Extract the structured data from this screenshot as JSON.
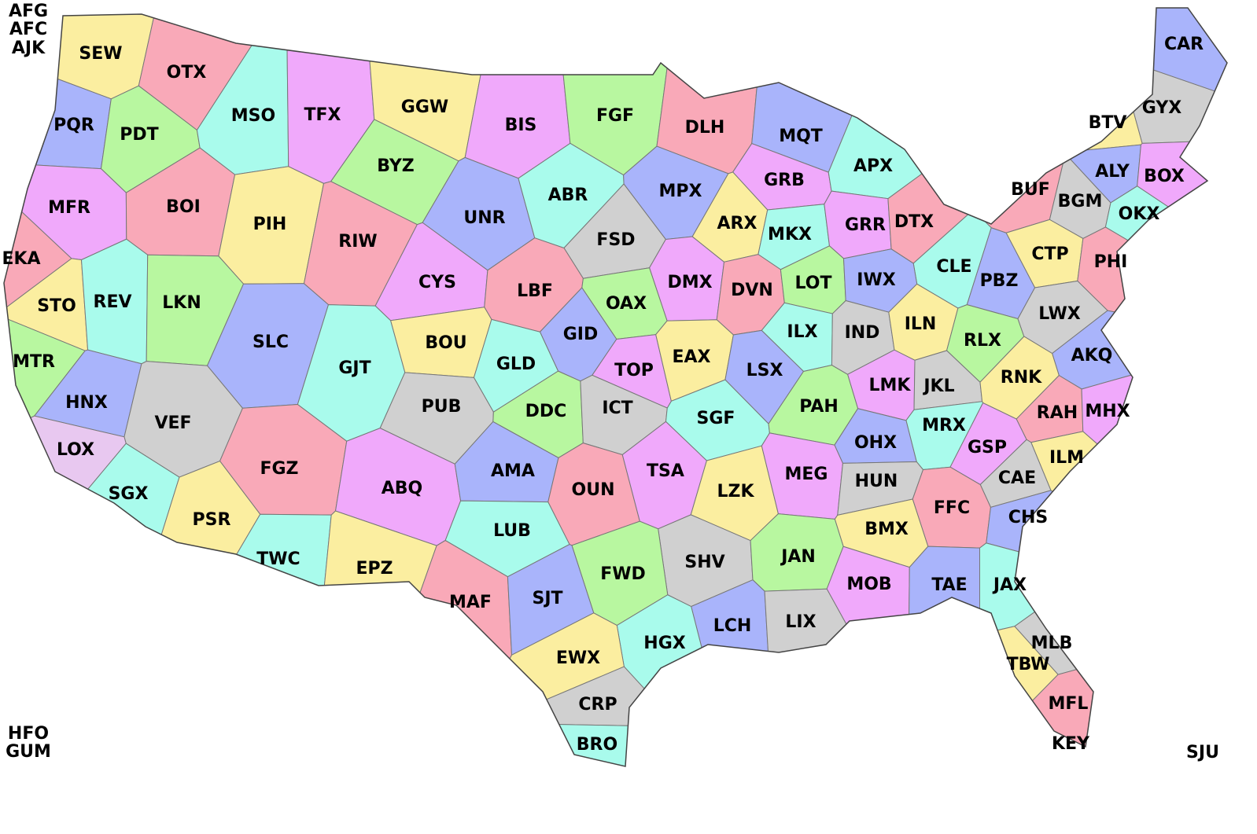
{
  "offices": [
    "AFG",
    "AFC",
    "AJK",
    "SEW",
    "OTX",
    "PQR",
    "PDT",
    "MSO",
    "TFX",
    "GGW",
    "BIS",
    "FGF",
    "DLH",
    "MQT",
    "BYZ",
    "MFR",
    "BOI",
    "PIH",
    "UNR",
    "ABR",
    "MPX",
    "GRB",
    "APX",
    "BUF",
    "BTV",
    "GYX",
    "CAR",
    "ALY",
    "BOX",
    "BGM",
    "OKX",
    "EKA",
    "RIW",
    "FSD",
    "ARX",
    "MKX",
    "GRR",
    "DTX",
    "CTP",
    "PHI",
    "CLE",
    "PBZ",
    "STO",
    "REV",
    "LKN",
    "CYS",
    "LBF",
    "DMX",
    "DVN",
    "LOT",
    "IWX",
    "SLC",
    "BOU",
    "OAX",
    "GID",
    "ILX",
    "IND",
    "ILN",
    "RLX",
    "LWX",
    "AKQ",
    "MTR",
    "GJT",
    "GLD",
    "TOP",
    "EAX",
    "LSX",
    "LMK",
    "JKL",
    "RNK",
    "HNX",
    "VEF",
    "PUB",
    "DDC",
    "ICT",
    "SGF",
    "PAH",
    "MRX",
    "RAH",
    "MHX",
    "LOX",
    "OHX",
    "GSP",
    "ILM",
    "FGZ",
    "ABQ",
    "AMA",
    "OUN",
    "TSA",
    "LZK",
    "MEG",
    "HUN",
    "CAE",
    "SGX",
    "PSR",
    "FFC",
    "CHS",
    "LUB",
    "BMX",
    "TWC",
    "EPZ",
    "SHV",
    "JAN",
    "FWD",
    "MOB",
    "TAE",
    "JAX",
    "MAF",
    "SJT",
    "LCH",
    "LIX",
    "HGX",
    "MLB",
    "TBW",
    "EWX",
    "CRP",
    "MFL",
    "BRO",
    "KEY",
    "HFO",
    "GUM",
    "SJU"
  ]
}
